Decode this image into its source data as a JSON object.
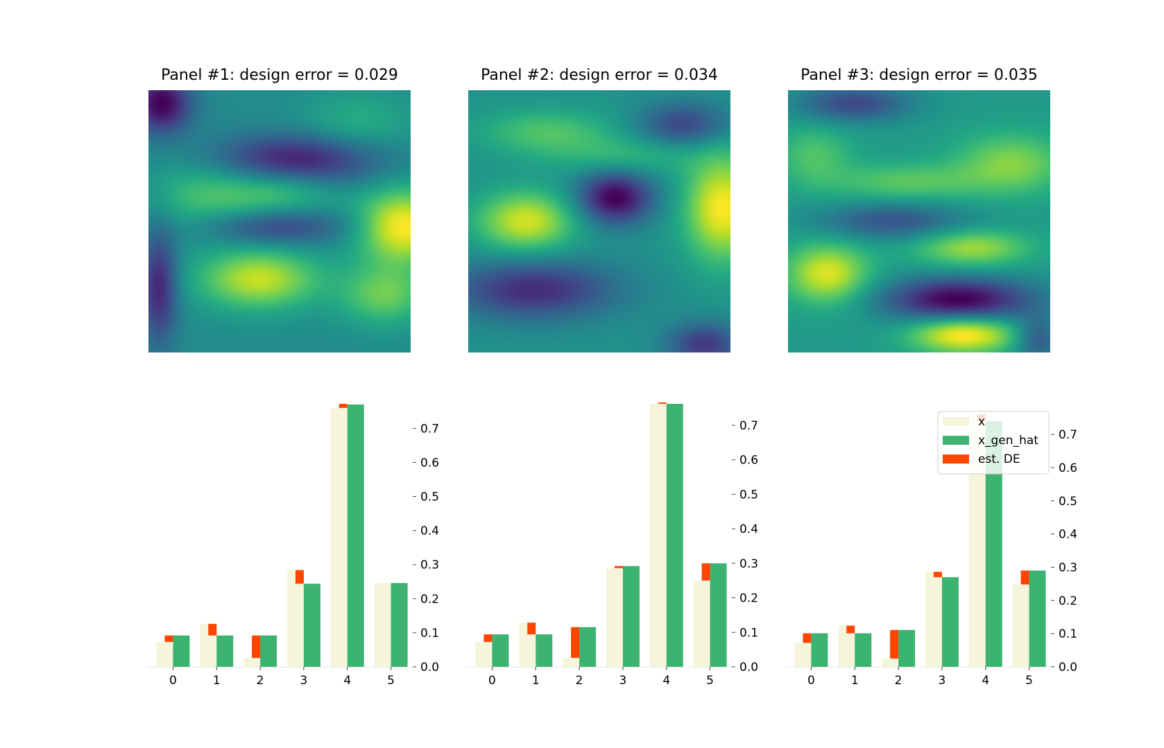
{
  "colors": {
    "x": "#f5f5dc",
    "x_gen_hat": "#3cb371",
    "est_DE": "#ff4500"
  },
  "legend": {
    "placement": "upper-right of panel 3",
    "entries": [
      "x",
      "x_gen_hat",
      "est. DE"
    ]
  },
  "chart_data": [
    {
      "type": "heatmap",
      "title": "Panel #1: design error = 0.029",
      "colormap": "viridis",
      "blobs": [
        {
          "cx": 0.97,
          "cy": 0.52,
          "amp": 1.1,
          "sx": 0.12,
          "sy": 0.1
        },
        {
          "cx": 0.42,
          "cy": 0.72,
          "amp": 0.9,
          "sx": 0.16,
          "sy": 0.08
        },
        {
          "cx": 0.22,
          "cy": 0.4,
          "amp": 0.45,
          "sx": 0.15,
          "sy": 0.1
        },
        {
          "cx": 0.5,
          "cy": 0.38,
          "amp": 0.5,
          "sx": 0.15,
          "sy": 0.07
        },
        {
          "cx": 0.9,
          "cy": 0.78,
          "amp": 0.6,
          "sx": 0.12,
          "sy": 0.08
        },
        {
          "cx": 0.55,
          "cy": 0.27,
          "amp": -0.9,
          "sx": 0.22,
          "sy": 0.07
        },
        {
          "cx": 0.05,
          "cy": 0.05,
          "amp": -1.0,
          "sx": 0.08,
          "sy": 0.08
        },
        {
          "cx": 0.48,
          "cy": 0.52,
          "amp": -0.6,
          "sx": 0.2,
          "sy": 0.05
        },
        {
          "cx": 0.04,
          "cy": 0.75,
          "amp": -0.8,
          "sx": 0.05,
          "sy": 0.15
        },
        {
          "cx": 0.8,
          "cy": 0.12,
          "amp": 0.3,
          "sx": 0.15,
          "sy": 0.08
        }
      ]
    },
    {
      "type": "heatmap",
      "title": "Panel #2: design error = 0.034",
      "colormap": "viridis",
      "blobs": [
        {
          "cx": 0.97,
          "cy": 0.45,
          "amp": 1.15,
          "sx": 0.1,
          "sy": 0.14
        },
        {
          "cx": 0.22,
          "cy": 0.5,
          "amp": 1.0,
          "sx": 0.13,
          "sy": 0.08
        },
        {
          "cx": 0.56,
          "cy": 0.41,
          "amp": -1.2,
          "sx": 0.1,
          "sy": 0.07
        },
        {
          "cx": 0.25,
          "cy": 0.76,
          "amp": -0.9,
          "sx": 0.22,
          "sy": 0.08
        },
        {
          "cx": 0.82,
          "cy": 0.13,
          "amp": -0.7,
          "sx": 0.12,
          "sy": 0.06
        },
        {
          "cx": 0.3,
          "cy": 0.16,
          "amp": 0.5,
          "sx": 0.18,
          "sy": 0.06
        },
        {
          "cx": 0.9,
          "cy": 0.97,
          "amp": -0.8,
          "sx": 0.1,
          "sy": 0.06
        },
        {
          "cx": 0.6,
          "cy": 0.25,
          "amp": 0.35,
          "sx": 0.2,
          "sy": 0.05
        }
      ]
    },
    {
      "type": "heatmap",
      "title": "Panel #3: design error = 0.035",
      "colormap": "viridis",
      "blobs": [
        {
          "cx": 0.67,
          "cy": 0.93,
          "amp": 1.1,
          "sx": 0.14,
          "sy": 0.05
        },
        {
          "cx": 0.15,
          "cy": 0.7,
          "amp": 0.9,
          "sx": 0.11,
          "sy": 0.08
        },
        {
          "cx": 0.65,
          "cy": 0.8,
          "amp": -1.2,
          "sx": 0.2,
          "sy": 0.06
        },
        {
          "cx": 0.7,
          "cy": 0.6,
          "amp": 0.7,
          "sx": 0.15,
          "sy": 0.05
        },
        {
          "cx": 0.85,
          "cy": 0.28,
          "amp": 0.6,
          "sx": 0.15,
          "sy": 0.08
        },
        {
          "cx": 0.4,
          "cy": 0.5,
          "amp": -0.6,
          "sx": 0.2,
          "sy": 0.05
        },
        {
          "cx": 0.25,
          "cy": 0.05,
          "amp": -0.7,
          "sx": 0.15,
          "sy": 0.05
        },
        {
          "cx": 0.45,
          "cy": 0.35,
          "amp": 0.45,
          "sx": 0.2,
          "sy": 0.05
        },
        {
          "cx": 0.1,
          "cy": 0.25,
          "amp": 0.4,
          "sx": 0.1,
          "sy": 0.08
        },
        {
          "cx": 0.95,
          "cy": 0.95,
          "amp": -0.6,
          "sx": 0.06,
          "sy": 0.06
        }
      ]
    },
    {
      "type": "bar",
      "categories": [
        "0",
        "1",
        "2",
        "3",
        "4",
        "5"
      ],
      "ylim": [
        0,
        0.77
      ],
      "yticks": [
        0.0,
        0.1,
        0.2,
        0.3,
        0.4,
        0.5,
        0.6,
        0.7
      ],
      "yticklabels": [
        "0.0",
        "0.1",
        "0.2",
        "0.3",
        "0.4",
        "0.5",
        "0.6",
        "0.7"
      ],
      "series": [
        {
          "name": "x",
          "values": [
            0.073,
            0.126,
            0.026,
            0.284,
            0.76,
            0.246
          ]
        },
        {
          "name": "x_gen_hat",
          "values": [
            0.092,
            0.092,
            0.092,
            0.244,
            0.77,
            0.246
          ]
        },
        {
          "name": "est. DE",
          "values": [
            0.019,
            0.034,
            0.066,
            0.04,
            0.012,
            0.0
          ]
        }
      ]
    },
    {
      "type": "bar",
      "categories": [
        "0",
        "1",
        "2",
        "3",
        "4",
        "5"
      ],
      "ylim": [
        0,
        0.76
      ],
      "yticks": [
        0.0,
        0.1,
        0.2,
        0.3,
        0.4,
        0.5,
        0.6,
        0.7
      ],
      "yticklabels": [
        "0.0",
        "0.1",
        "0.2",
        "0.3",
        "0.4",
        "0.5",
        "0.6",
        "0.7"
      ],
      "series": [
        {
          "name": "x",
          "values": [
            0.072,
            0.128,
            0.026,
            0.286,
            0.762,
            0.25
          ]
        },
        {
          "name": "x_gen_hat",
          "values": [
            0.094,
            0.094,
            0.115,
            0.292,
            0.762,
            0.3
          ]
        },
        {
          "name": "est. DE",
          "values": [
            0.022,
            0.034,
            0.089,
            0.006,
            0.004,
            0.05
          ]
        }
      ]
    },
    {
      "type": "bar",
      "categories": [
        "0",
        "1",
        "2",
        "3",
        "4",
        "5"
      ],
      "ylim": [
        0,
        0.79
      ],
      "yticks": [
        0.0,
        0.1,
        0.2,
        0.3,
        0.4,
        0.5,
        0.6,
        0.7
      ],
      "yticklabels": [
        "0.0",
        "0.1",
        "0.2",
        "0.3",
        "0.4",
        "0.5",
        "0.6",
        "0.7"
      ],
      "series": [
        {
          "name": "x",
          "values": [
            0.072,
            0.124,
            0.025,
            0.286,
            0.76,
            0.248
          ]
        },
        {
          "name": "x_gen_hat",
          "values": [
            0.101,
            0.101,
            0.111,
            0.27,
            0.74,
            0.29
          ]
        },
        {
          "name": "est. DE",
          "values": [
            0.029,
            0.023,
            0.086,
            0.016,
            0.02,
            0.042
          ]
        }
      ]
    }
  ]
}
